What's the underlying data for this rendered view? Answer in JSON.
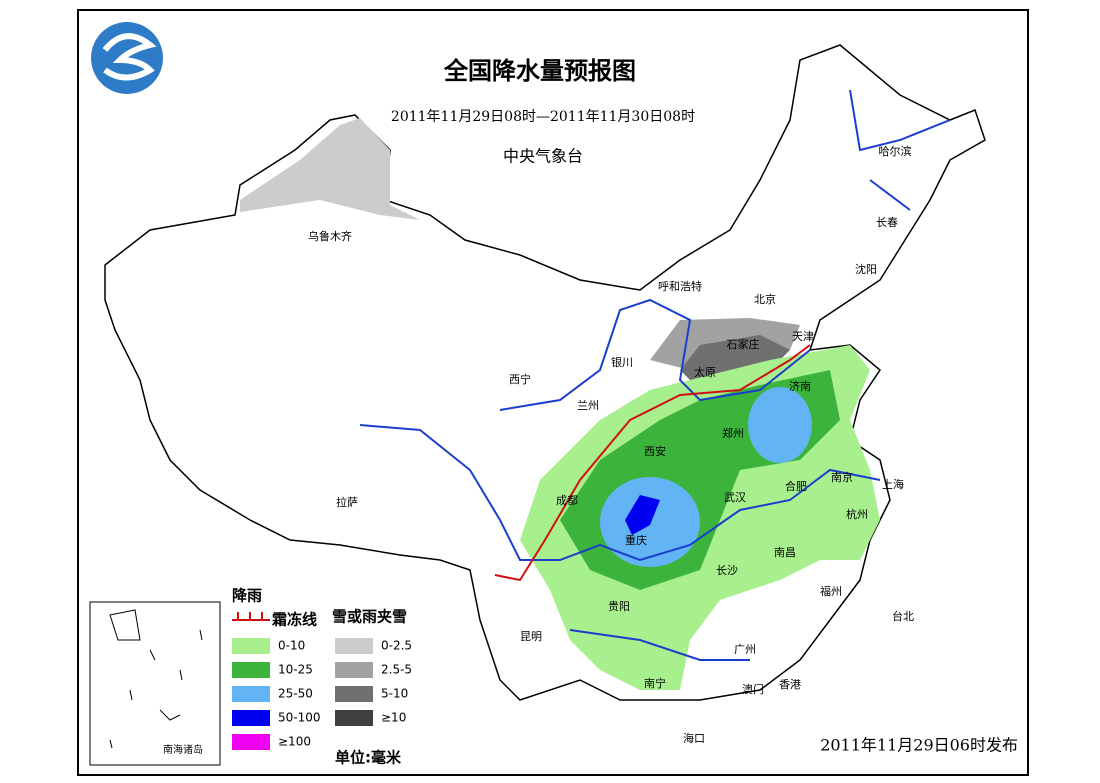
{
  "header": {
    "title": "全国降水量预报图",
    "period": "2011年11月29日08时—2011年11月30日08时",
    "issuer": "中央气象台"
  },
  "cities": [
    "乌鲁木齐",
    "哈尔滨",
    "长春",
    "沈阳",
    "呼和浩特",
    "北京",
    "天津",
    "石家庄",
    "太原",
    "银川",
    "西宁",
    "兰州",
    "济南",
    "郑州",
    "西安",
    "南京",
    "上海",
    "合肥",
    "成都",
    "武汉",
    "重庆",
    "杭州",
    "拉萨",
    "长沙",
    "南昌",
    "福州",
    "台北",
    "贵阳",
    "昆明",
    "广州",
    "南宁",
    "澳门",
    "香港",
    "海口"
  ],
  "inset_label": "南海诸岛",
  "legend": {
    "rain_title": "降雨",
    "frost_line": "霜冻线",
    "snow_title": "雪或雨夹雪",
    "rain": [
      {
        "label": "0-10",
        "color": "#a8f08e"
      },
      {
        "label": "10-25",
        "color": "#3cb43c"
      },
      {
        "label": "25-50",
        "color": "#62b4f4"
      },
      {
        "label": "50-100",
        "color": "#0000f0"
      },
      {
        "label": "≥100",
        "color": "#f000f0"
      }
    ],
    "snow": [
      {
        "label": "0-2.5",
        "color": "#cccccc"
      },
      {
        "label": "2.5-5",
        "color": "#a2a2a2"
      },
      {
        "label": "5-10",
        "color": "#707070"
      },
      {
        "label": "≥10",
        "color": "#404040"
      }
    ],
    "unit": "单位:毫米"
  },
  "issue_time": "2011年11月29日06时发布"
}
